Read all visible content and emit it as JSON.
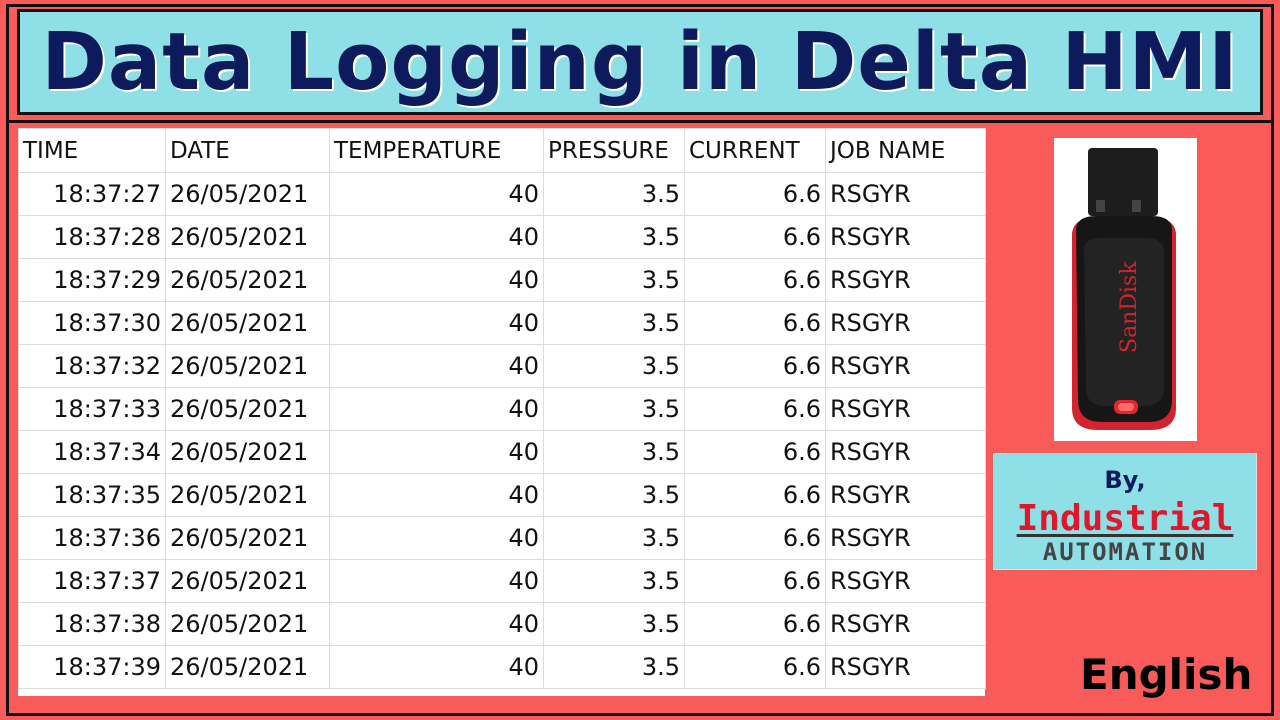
{
  "title": "Data Logging in Delta HMI",
  "table": {
    "headers": [
      "TIME",
      "DATE",
      "TEMPERATURE",
      "PRESSURE",
      "CURRENT",
      "JOB NAME"
    ],
    "rows": [
      [
        "18:37:27",
        "26/05/2021",
        "40",
        "3.5",
        "6.6",
        "RSGYR"
      ],
      [
        "18:37:28",
        "26/05/2021",
        "40",
        "3.5",
        "6.6",
        "RSGYR"
      ],
      [
        "18:37:29",
        "26/05/2021",
        "40",
        "3.5",
        "6.6",
        "RSGYR"
      ],
      [
        "18:37:30",
        "26/05/2021",
        "40",
        "3.5",
        "6.6",
        "RSGYR"
      ],
      [
        "18:37:32",
        "26/05/2021",
        "40",
        "3.5",
        "6.6",
        "RSGYR"
      ],
      [
        "18:37:33",
        "26/05/2021",
        "40",
        "3.5",
        "6.6",
        "RSGYR"
      ],
      [
        "18:37:34",
        "26/05/2021",
        "40",
        "3.5",
        "6.6",
        "RSGYR"
      ],
      [
        "18:37:35",
        "26/05/2021",
        "40",
        "3.5",
        "6.6",
        "RSGYR"
      ],
      [
        "18:37:36",
        "26/05/2021",
        "40",
        "3.5",
        "6.6",
        "RSGYR"
      ],
      [
        "18:37:37",
        "26/05/2021",
        "40",
        "3.5",
        "6.6",
        "RSGYR"
      ],
      [
        "18:37:38",
        "26/05/2021",
        "40",
        "3.5",
        "6.6",
        "RSGYR"
      ],
      [
        "18:37:39",
        "26/05/2021",
        "40",
        "3.5",
        "6.6",
        "RSGYR"
      ]
    ]
  },
  "usb_drive": {
    "icon": "usb-flash-drive-icon",
    "brand_label": "SanDisk"
  },
  "credit": {
    "by": "By,",
    "brand_line1": "Industrial",
    "brand_line2": "AUTOMATION"
  },
  "language": "English",
  "colors": {
    "background": "#f95a5a",
    "title_bg": "#8ee0e6",
    "title_text": "#0d1a5c",
    "brand_red": "#e0162b"
  }
}
